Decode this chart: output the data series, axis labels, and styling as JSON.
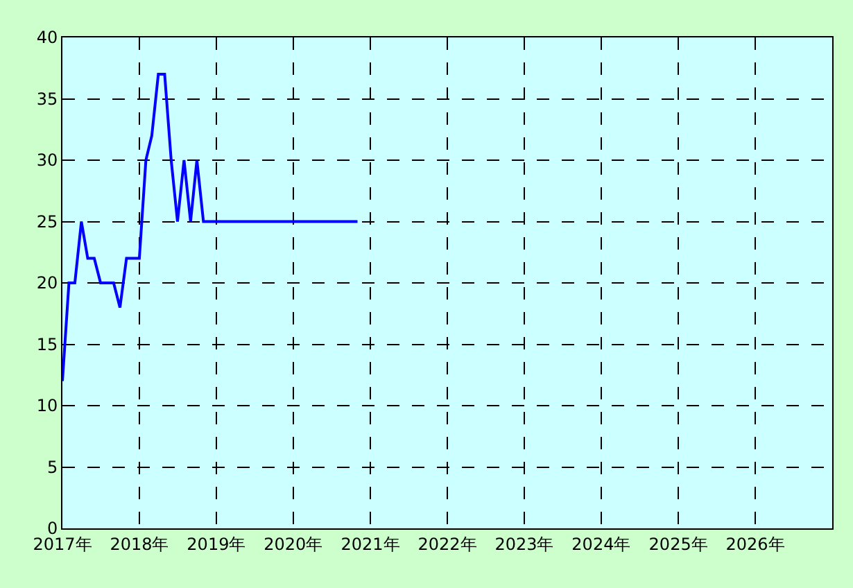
{
  "chart_data": {
    "type": "line",
    "x": [
      "2017-01",
      "2017-02",
      "2017-03",
      "2017-04",
      "2017-05",
      "2017-06",
      "2017-07",
      "2017-08",
      "2017-09",
      "2017-10",
      "2017-11",
      "2017-12",
      "2018-01",
      "2018-02",
      "2018-03",
      "2018-04",
      "2018-05",
      "2018-06",
      "2018-07",
      "2018-08",
      "2018-09",
      "2018-10",
      "2018-11",
      "2018-12",
      "2019-06",
      "2020-01",
      "2020-06",
      "2020-11"
    ],
    "series": [
      {
        "color": "#0000ff",
        "values": [
          12,
          20,
          20,
          25,
          22,
          22,
          20,
          20,
          20,
          18,
          22,
          22,
          22,
          30,
          32,
          37,
          37,
          30,
          25,
          30,
          25,
          30,
          25,
          25,
          25,
          25,
          25,
          25
        ]
      }
    ],
    "xlim": [
      "2017-01-01",
      "2027-01-01"
    ],
    "xticks": [
      {
        "value": "2017-01-01",
        "label": "2017年"
      },
      {
        "value": "2018-01-01",
        "label": "2018年"
      },
      {
        "value": "2019-01-01",
        "label": "2019年"
      },
      {
        "value": "2020-01-01",
        "label": "2020年"
      },
      {
        "value": "2021-01-01",
        "label": "2021年"
      },
      {
        "value": "2022-01-01",
        "label": "2022年"
      },
      {
        "value": "2023-01-01",
        "label": "2023年"
      },
      {
        "value": "2024-01-01",
        "label": "2024年"
      },
      {
        "value": "2025-01-01",
        "label": "2025年"
      },
      {
        "value": "2026-01-01",
        "label": "2026年"
      }
    ],
    "ylim": [
      0,
      40
    ],
    "yticks": [
      0,
      5,
      10,
      15,
      20,
      25,
      30,
      35,
      40
    ],
    "grid": true,
    "legend": false,
    "marker": "none",
    "line_style": "solid"
  }
}
